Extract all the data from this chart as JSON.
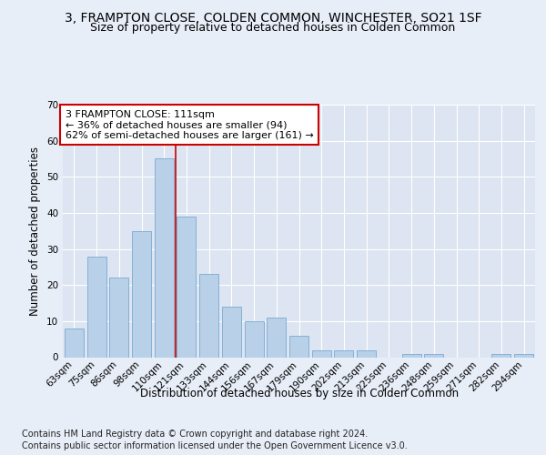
{
  "title1": "3, FRAMPTON CLOSE, COLDEN COMMON, WINCHESTER, SO21 1SF",
  "title2": "Size of property relative to detached houses in Colden Common",
  "xlabel": "Distribution of detached houses by size in Colden Common",
  "ylabel": "Number of detached properties",
  "footer1": "Contains HM Land Registry data © Crown copyright and database right 2024.",
  "footer2": "Contains public sector information licensed under the Open Government Licence v3.0.",
  "annotation_line1": "3 FRAMPTON CLOSE: 111sqm",
  "annotation_line2": "← 36% of detached houses are smaller (94)",
  "annotation_line3": "62% of semi-detached houses are larger (161) →",
  "categories": [
    "63sqm",
    "75sqm",
    "86sqm",
    "98sqm",
    "110sqm",
    "121sqm",
    "133sqm",
    "144sqm",
    "156sqm",
    "167sqm",
    "179sqm",
    "190sqm",
    "202sqm",
    "213sqm",
    "225sqm",
    "236sqm",
    "248sqm",
    "259sqm",
    "271sqm",
    "282sqm",
    "294sqm"
  ],
  "values": [
    8,
    28,
    22,
    35,
    55,
    39,
    23,
    14,
    10,
    11,
    6,
    2,
    2,
    2,
    0,
    1,
    1,
    0,
    0,
    1,
    1
  ],
  "bar_color": "#b8d0e8",
  "bar_edge_color": "#7aaad0",
  "highlight_color": "#cc0000",
  "highlight_index": 4,
  "ylim": [
    0,
    70
  ],
  "yticks": [
    0,
    10,
    20,
    30,
    40,
    50,
    60,
    70
  ],
  "bg_color": "#e8eef8",
  "plot_bg_color": "#dde5f2",
  "grid_color": "#ffffff",
  "title_fontsize": 10,
  "subtitle_fontsize": 9,
  "axis_label_fontsize": 8.5,
  "tick_fontsize": 7.5,
  "annotation_fontsize": 8,
  "footer_fontsize": 7
}
